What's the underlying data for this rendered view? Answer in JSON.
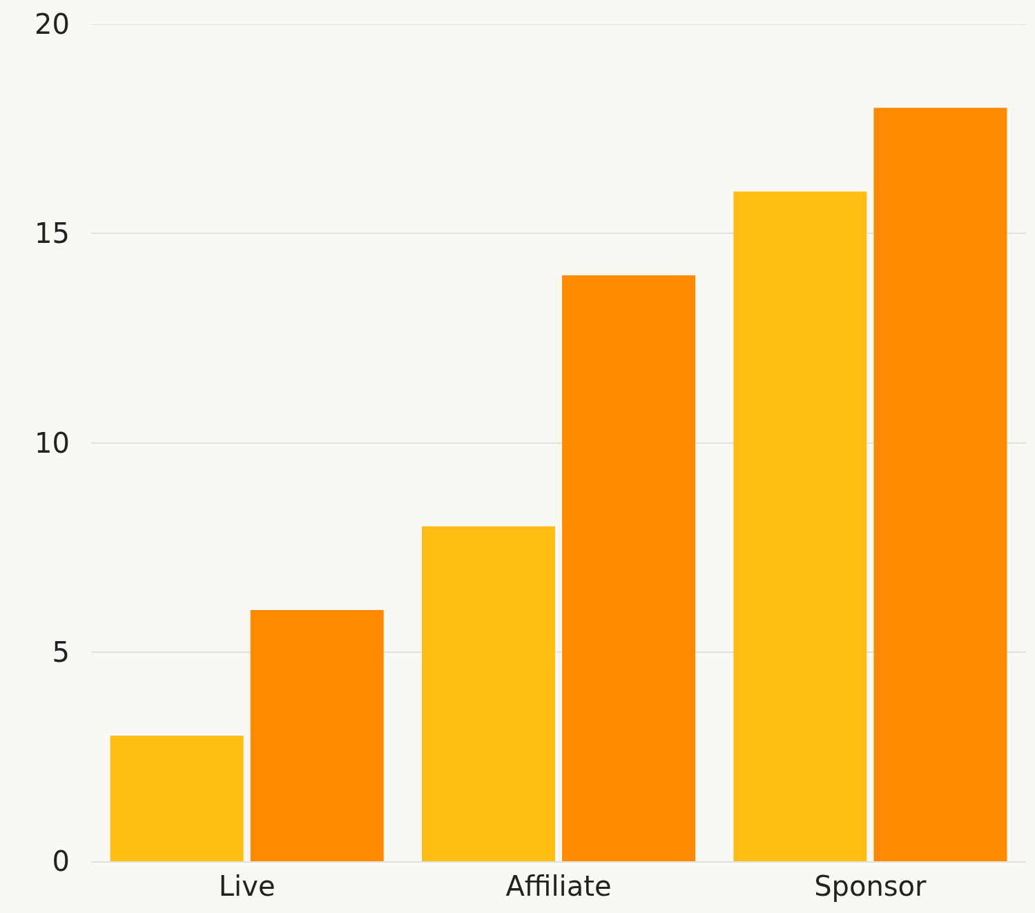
{
  "chart_data": {
    "type": "bar",
    "categories": [
      "Live",
      "Affiliate",
      "Sponsor"
    ],
    "series": [
      {
        "color": "#ffbd14",
        "values": [
          3,
          8,
          16
        ]
      },
      {
        "color": "#ff8a00",
        "values": [
          6,
          14,
          18
        ]
      }
    ],
    "ylim": [
      0,
      20
    ],
    "yticks": [
      0,
      5,
      10,
      15,
      20
    ],
    "grid": "y"
  }
}
